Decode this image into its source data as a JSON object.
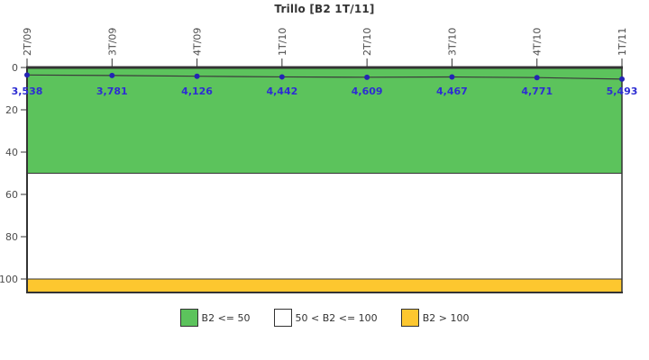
{
  "chart_data": {
    "type": "line",
    "title": "Trillo [B2 1T/11]",
    "categories": [
      "2T/09",
      "3T/09",
      "4T/09",
      "1T/10",
      "2T/10",
      "3T/10",
      "4T/10",
      "1T/11"
    ],
    "series": [
      {
        "name": "B2",
        "values": [
          3.538,
          3.781,
          4.126,
          4.442,
          4.609,
          4.467,
          4.771,
          5.493
        ]
      }
    ],
    "value_labels": [
      "3,538",
      "3,781",
      "4,126",
      "4,442",
      "4,609",
      "4,467",
      "4,771",
      "5,493"
    ],
    "y_ticks": [
      0,
      20,
      40,
      60,
      80,
      100
    ],
    "ylim": [
      0,
      106.4
    ],
    "y_axis_inverted": true,
    "grid": false,
    "legend_position": "bottom",
    "bands": [
      {
        "label": "B2 <= 50",
        "from": 0,
        "to": 50,
        "color": "#5CC35C"
      },
      {
        "label": "50 < B2 <= 100",
        "from": 50,
        "to": 100,
        "color": "#FFFFFF"
      },
      {
        "label": "B2 > 100",
        "from": 100,
        "to": 106.4,
        "color": "#FDC72F"
      }
    ],
    "colors": {
      "line": "#3A3A3A",
      "marker": "#2424B4",
      "point_label": "#2D2DD2",
      "axis": "#333333",
      "tick_label": "#4D4D4D"
    }
  }
}
